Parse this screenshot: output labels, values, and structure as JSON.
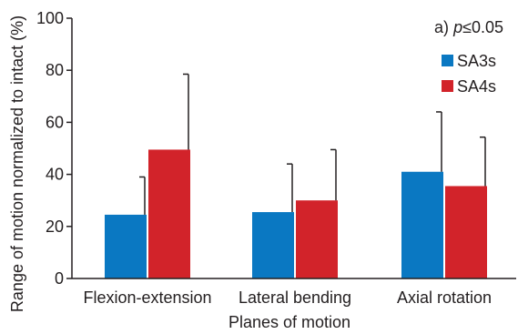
{
  "chart_data": {
    "type": "bar",
    "title": "",
    "xlabel": "Planes of motion",
    "ylabel": "Range of motion normalized to intact (%)",
    "ylim": [
      0,
      100
    ],
    "yticks": [
      "0",
      "20",
      "40",
      "60",
      "80",
      "100"
    ],
    "categories": [
      "Flexion-extension",
      "Lateral bending",
      "Axial rotation"
    ],
    "series": [
      {
        "name": "SA3s",
        "color": "#0a78c2",
        "values": [
          24.5,
          25.5,
          41
        ],
        "error": [
          14.5,
          18.5,
          23
        ]
      },
      {
        "name": "SA4s",
        "color": "#d2232a",
        "values": [
          49.5,
          30,
          35.5
        ],
        "error": [
          29,
          19.5,
          18.8
        ]
      }
    ],
    "annotation": {
      "prefix": "a) ",
      "p": "p",
      "rest": "≤0.05"
    },
    "legend_position": "top-right",
    "grid": false
  }
}
